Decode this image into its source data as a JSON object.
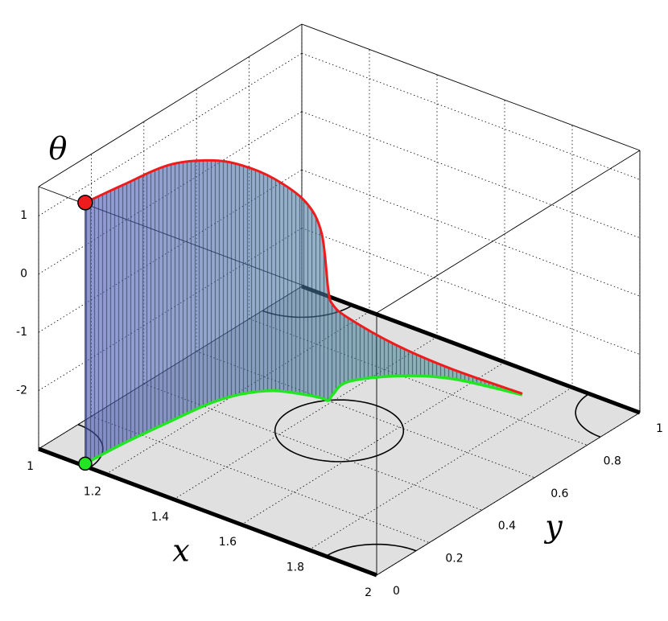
{
  "chart_data": {
    "type": "line3d",
    "xlabel": "x",
    "ylabel": "y",
    "zlabel": "θ",
    "x": [
      1.13,
      1.14,
      1.16,
      1.18,
      1.21,
      1.26,
      1.33,
      1.37,
      1.39,
      1.38,
      1.37,
      1.44,
      1.55,
      1.73
    ],
    "y": [
      0.01,
      0.14,
      0.29,
      0.42,
      0.5,
      0.56,
      0.59,
      0.6,
      0.6,
      0.63,
      0.7,
      0.79,
      0.86,
      0.9
    ],
    "z": [
      1.48,
      1.44,
      1.41,
      1.17,
      0.93,
      0.64,
      0.31,
      -0.17,
      -1.11,
      -1.46,
      -1.9,
      -2.46,
      -2.83,
      -2.98
    ],
    "curve_color": "#ee1c1c",
    "projection_color": "#22e622",
    "obstacles": [
      {
        "x": 1.5,
        "y": 0.5,
        "r": 0.15
      },
      {
        "x": 1,
        "y": 0,
        "r": 0.15
      },
      {
        "x": 2,
        "y": 0,
        "r": 0.15
      },
      {
        "x": 2,
        "y": 1,
        "r": 0.15
      },
      {
        "x": 1,
        "y": 1,
        "r": 0.15
      }
    ],
    "xlim": [
      1,
      2
    ],
    "ylim": [
      0,
      1
    ],
    "zlim": [
      -3,
      1.5
    ],
    "xticks": [
      1,
      1.2,
      1.4,
      1.6,
      1.8,
      2
    ],
    "yticks": [
      0,
      0.2,
      0.4,
      0.6,
      0.8,
      1
    ],
    "zticks": [
      -2,
      -1,
      0,
      1
    ],
    "grid": true
  }
}
